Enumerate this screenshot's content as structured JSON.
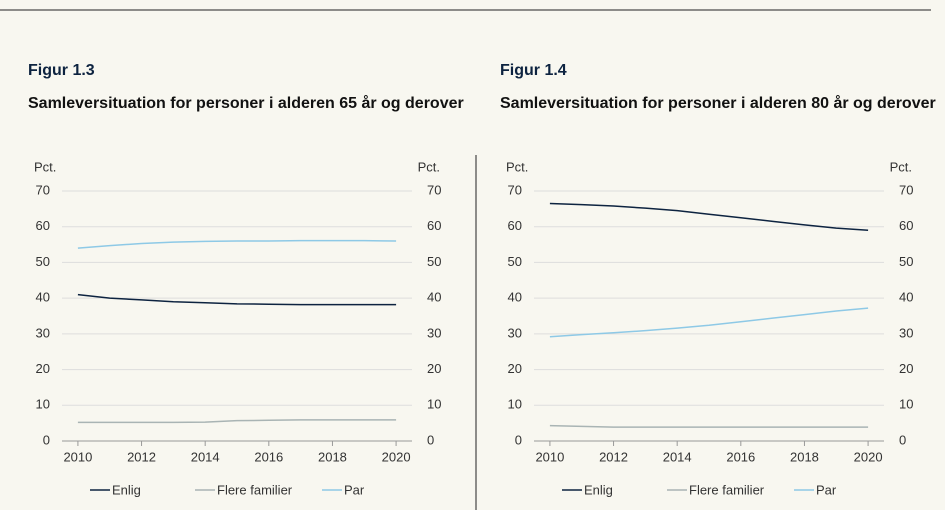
{
  "chart_data": [
    {
      "type": "line",
      "figure": "Figur 1.3",
      "title": "Samleversituation for personer i alderen 65 år og derover",
      "y_label": "Pct.",
      "y2_label": "Pct.",
      "x": [
        2010,
        2011,
        2012,
        2013,
        2014,
        2015,
        2016,
        2017,
        2018,
        2019,
        2020
      ],
      "xlim": [
        2009.5,
        2020.5
      ],
      "xticks": [
        2010,
        2012,
        2014,
        2016,
        2018,
        2020
      ],
      "ylim": [
        0,
        70
      ],
      "yticks": [
        0,
        10,
        20,
        30,
        40,
        50,
        60,
        70
      ],
      "y2lim": [
        0,
        70
      ],
      "y2ticks": [
        0,
        10,
        20,
        30,
        40,
        50,
        60,
        70
      ],
      "grid": true,
      "series": [
        {
          "name": "Enlig",
          "color": "#0d2340",
          "values": [
            41,
            40,
            39.5,
            39,
            38.7,
            38.4,
            38.3,
            38.2,
            38.2,
            38.2,
            38.2
          ]
        },
        {
          "name": "Flere familier",
          "color": "#a9b4b4",
          "values": [
            5.2,
            5.2,
            5.2,
            5.2,
            5.3,
            5.7,
            5.8,
            5.9,
            5.9,
            5.9,
            5.9
          ]
        },
        {
          "name": "Par",
          "color": "#8ec9e6",
          "values": [
            54,
            54.7,
            55.3,
            55.7,
            55.9,
            56,
            56,
            56.1,
            56.1,
            56.1,
            56
          ]
        }
      ]
    },
    {
      "type": "line",
      "figure": "Figur 1.4",
      "title": "Samleversituation for personer i alderen 80 år og derover",
      "y_label": "Pct.",
      "y2_label": "Pct.",
      "x": [
        2010,
        2011,
        2012,
        2013,
        2014,
        2015,
        2016,
        2017,
        2018,
        2019,
        2020
      ],
      "xlim": [
        2009.5,
        2020.5
      ],
      "xticks": [
        2010,
        2012,
        2014,
        2016,
        2018,
        2020
      ],
      "ylim": [
        0,
        70
      ],
      "yticks": [
        0,
        10,
        20,
        30,
        40,
        50,
        60,
        70
      ],
      "y2lim": [
        0,
        70
      ],
      "y2ticks": [
        0,
        10,
        20,
        30,
        40,
        50,
        60,
        70
      ],
      "grid": true,
      "series": [
        {
          "name": "Enlig",
          "color": "#0d2340",
          "values": [
            66.5,
            66.2,
            65.8,
            65.2,
            64.5,
            63.5,
            62.5,
            61.5,
            60.5,
            59.6,
            59
          ]
        },
        {
          "name": "Flere familier",
          "color": "#a9b4b4",
          "values": [
            4.3,
            4.1,
            3.9,
            3.9,
            3.9,
            3.9,
            3.9,
            3.9,
            3.9,
            3.9,
            3.9
          ]
        },
        {
          "name": "Par",
          "color": "#8ec9e6",
          "values": [
            29.2,
            29.8,
            30.3,
            30.9,
            31.6,
            32.4,
            33.4,
            34.4,
            35.4,
            36.4,
            37.2
          ]
        }
      ]
    }
  ]
}
